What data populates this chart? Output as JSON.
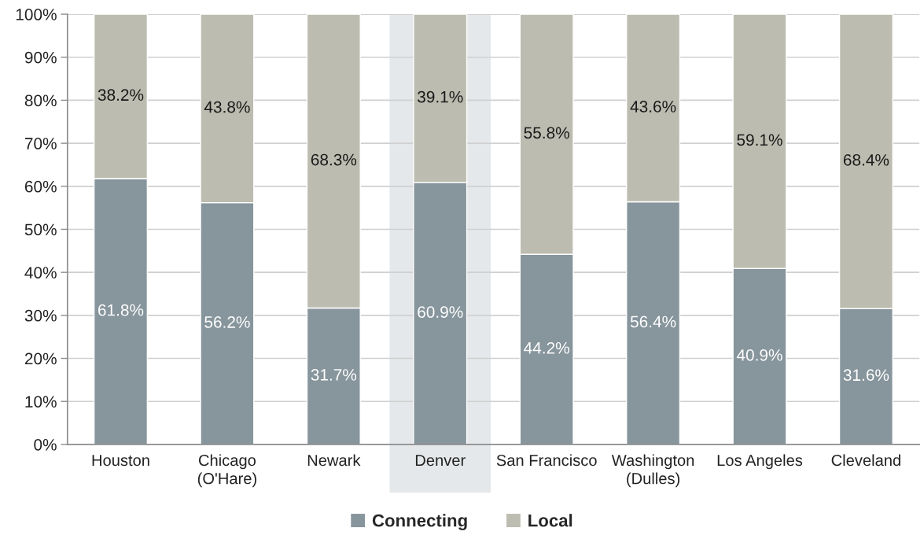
{
  "chart_data": {
    "type": "bar",
    "stacked": true,
    "categories": [
      "Houston",
      "Chicago\n(O'Hare)",
      "Newark",
      "Denver",
      "San Francisco",
      "Washington\n(Dulles)",
      "Los Angeles",
      "Cleveland"
    ],
    "series": [
      {
        "name": "Connecting",
        "color": "#87959c",
        "values": [
          61.8,
          56.2,
          31.7,
          60.9,
          44.2,
          56.4,
          40.9,
          31.6
        ],
        "value_labels": [
          "61.8%",
          "56.2%",
          "31.7%",
          "60.9%",
          "44.2%",
          "56.4%",
          "40.9%",
          "31.6%"
        ]
      },
      {
        "name": "Local",
        "color": "#bcbcb0",
        "values": [
          38.2,
          43.8,
          68.3,
          39.1,
          55.8,
          43.6,
          59.1,
          68.4
        ],
        "value_labels": [
          "38.2%",
          "43.8%",
          "68.3%",
          "39.1%",
          "55.8%",
          "43.6%",
          "59.1%",
          "68.4%"
        ]
      }
    ],
    "ylim": [
      0,
      100
    ],
    "yticks": [
      {
        "value": 0,
        "label": "0%"
      },
      {
        "value": 10,
        "label": "10%"
      },
      {
        "value": 20,
        "label": "20%"
      },
      {
        "value": 30,
        "label": "30%"
      },
      {
        "value": 40,
        "label": "40%"
      },
      {
        "value": 50,
        "label": "50%"
      },
      {
        "value": 60,
        "label": "60%"
      },
      {
        "value": 70,
        "label": "70%"
      },
      {
        "value": 80,
        "label": "80%"
      },
      {
        "value": 90,
        "label": "90%"
      },
      {
        "value": 100,
        "label": "100%"
      }
    ],
    "bands": [
      {
        "axis": "x",
        "from": "Denver",
        "to": "Denver",
        "color": "#e5e8ea"
      }
    ],
    "grid": "y",
    "legend": "bottom"
  }
}
